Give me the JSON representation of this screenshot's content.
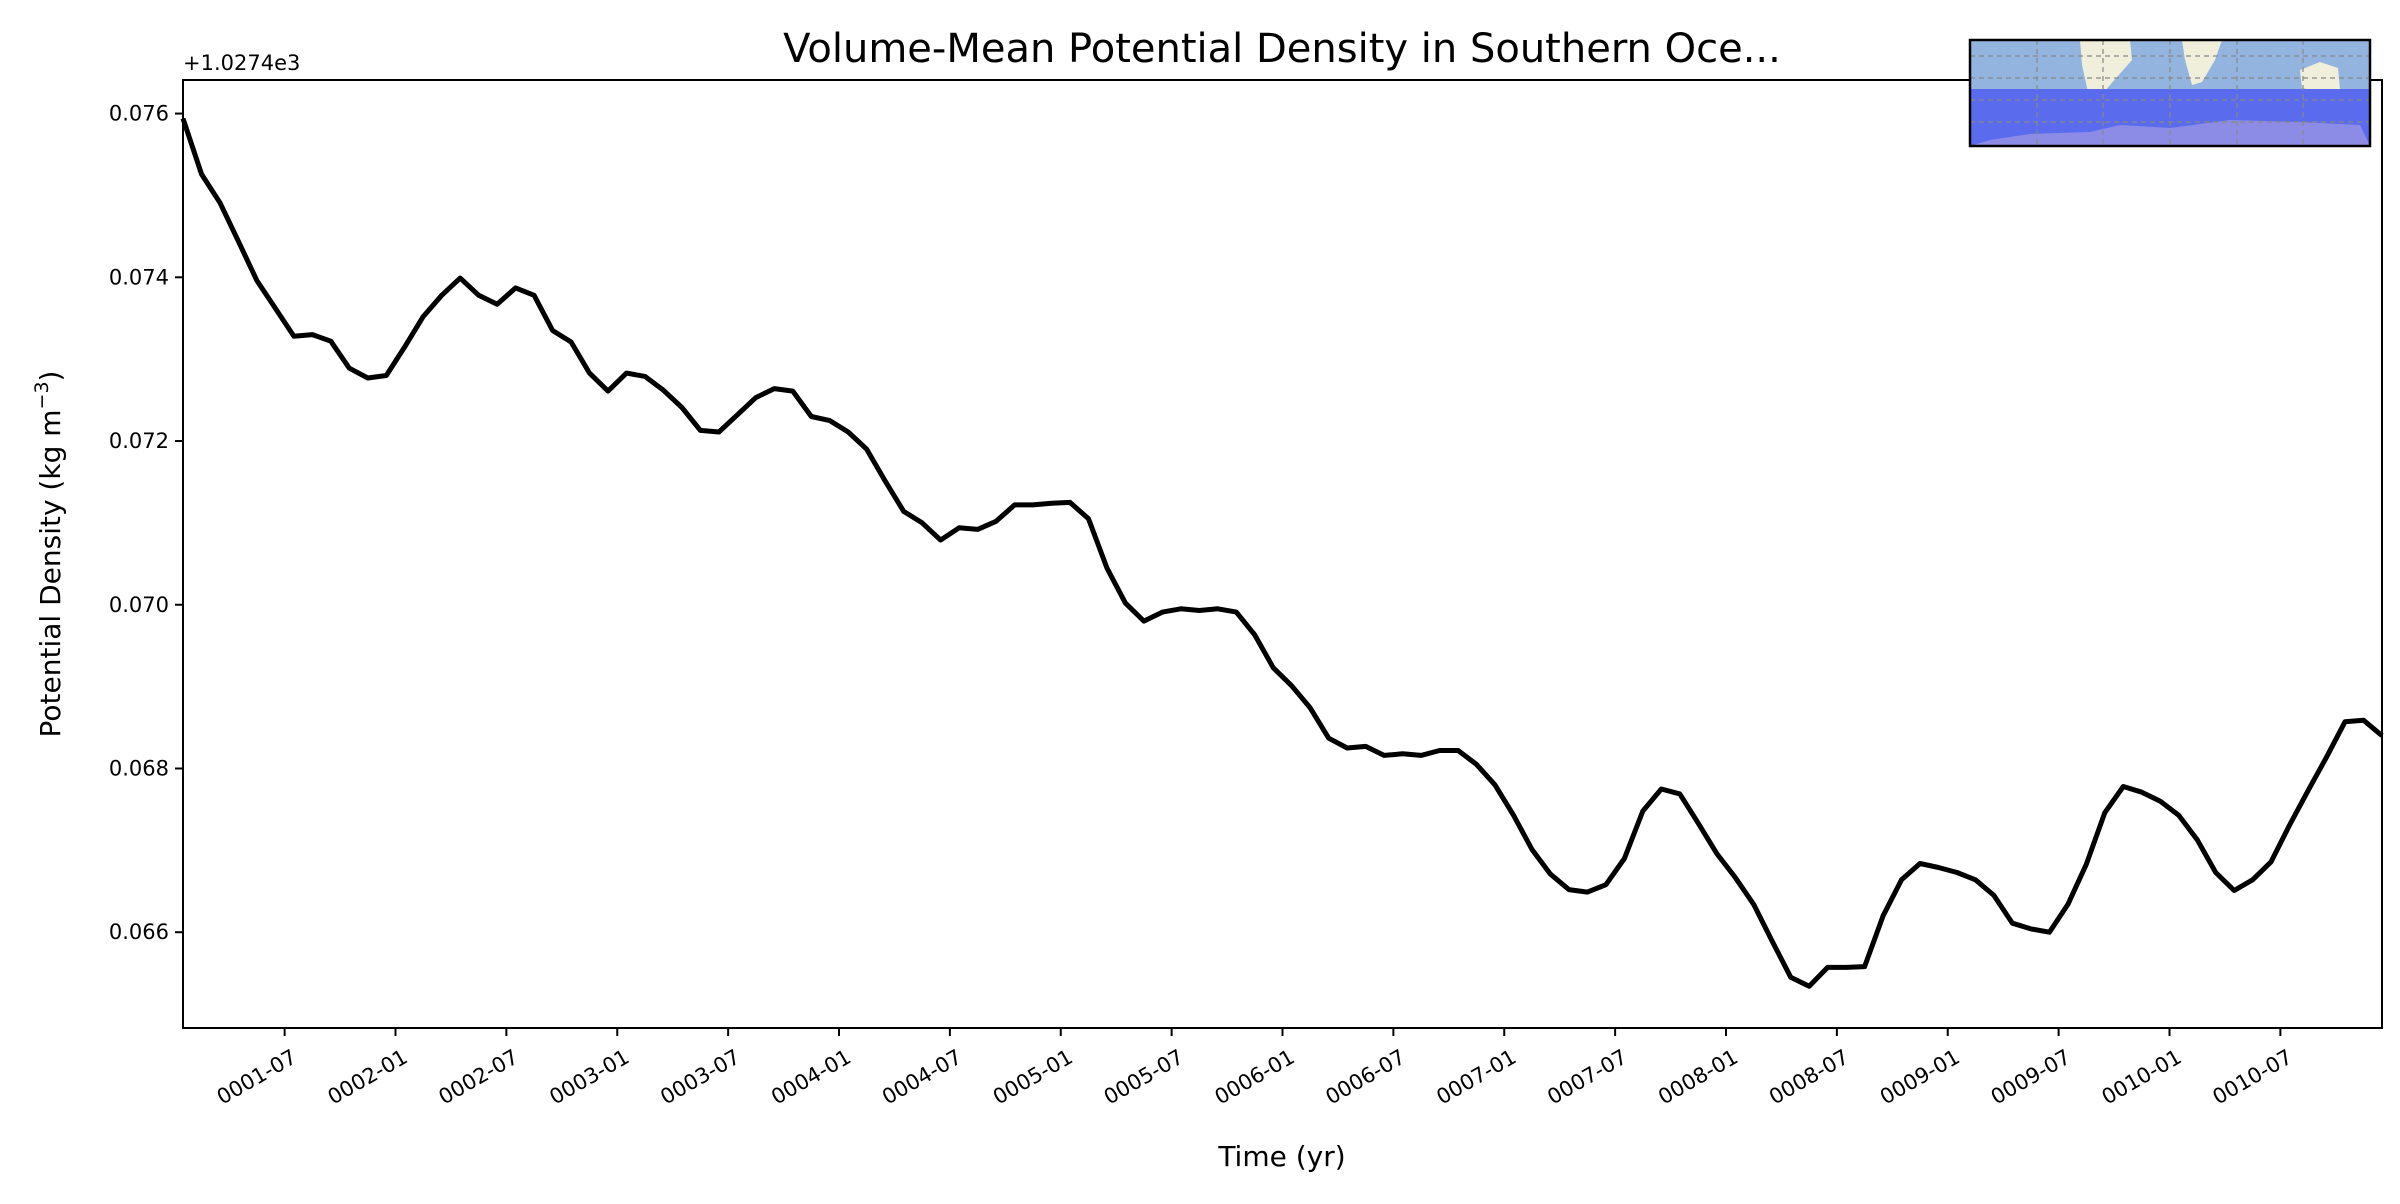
{
  "chart_data": {
    "type": "line",
    "title": "Volume-Mean Potential Density in Southern Oce...",
    "xlabel": "Time (yr)",
    "ylabel": "Potential Density (kg m",
    "ylabel_sup": "−3",
    "ylabel_close": ")",
    "offset_text": "+1.0274e3",
    "ylim": [
      0.06483,
      0.07641
    ],
    "yticks": [
      0.066,
      0.068,
      0.07,
      0.072,
      0.074,
      0.076
    ],
    "ytick_labels": [
      "0.066",
      "0.068",
      "0.070",
      "0.072",
      "0.074",
      "0.076"
    ],
    "x_unit": "months since 0001-01 (mid-month samples)",
    "xlim": [
      0,
      119
    ],
    "xticks": [
      5.5,
      11.5,
      17.5,
      23.5,
      29.5,
      35.5,
      41.5,
      47.5,
      53.5,
      59.5,
      65.5,
      71.5,
      77.5,
      83.5,
      89.5,
      95.5,
      101.5,
      107.5,
      113.5
    ],
    "xtick_labels": [
      "0001-07",
      "0002-01",
      "0002-07",
      "0003-01",
      "0003-07",
      "0004-01",
      "0004-07",
      "0005-01",
      "0005-07",
      "0006-01",
      "0006-07",
      "0007-01",
      "0007-07",
      "0008-01",
      "0008-07",
      "0009-01",
      "0009-07",
      "0010-01",
      "0010-07"
    ],
    "grid": false,
    "line_color": "#000000",
    "inset": "Southern Ocean region map (world map with region below ~35°S highlighted)",
    "colors": {
      "ocean": "#94b4e0",
      "land": "#efefdc",
      "region": "#5a6ced",
      "antarctica": "#8c8ce6"
    },
    "series": [
      {
        "name": "Potential Density",
        "values": [
          0.07594,
          0.07526,
          0.07491,
          0.07444,
          0.07396,
          0.07362,
          0.07328,
          0.0733,
          0.07322,
          0.07289,
          0.07277,
          0.0728,
          0.07315,
          0.07352,
          0.07378,
          0.07399,
          0.07378,
          0.07367,
          0.07387,
          0.07378,
          0.07335,
          0.07321,
          0.07283,
          0.07261,
          0.07283,
          0.07279,
          0.07262,
          0.07241,
          0.07213,
          0.07211,
          0.07232,
          0.07253,
          0.07264,
          0.07261,
          0.0723,
          0.07225,
          0.07211,
          0.0719,
          0.07151,
          0.07114,
          0.071,
          0.07079,
          0.07094,
          0.07092,
          0.07102,
          0.07122,
          0.07122,
          0.07124,
          0.07125,
          0.07105,
          0.07045,
          0.07002,
          0.0698,
          0.06991,
          0.06995,
          0.06993,
          0.06995,
          0.06991,
          0.06963,
          0.06923,
          0.06901,
          0.06874,
          0.06837,
          0.06825,
          0.06827,
          0.06816,
          0.06818,
          0.06816,
          0.06822,
          0.06822,
          0.06805,
          0.0678,
          0.06743,
          0.06701,
          0.06671,
          0.06652,
          0.06649,
          0.06658,
          0.0669,
          0.06748,
          0.06775,
          0.06769,
          0.06733,
          0.06696,
          0.06667,
          0.06634,
          0.06589,
          0.06545,
          0.06534,
          0.06557,
          0.06557,
          0.06558,
          0.0662,
          0.06664,
          0.06684,
          0.06679,
          0.06673,
          0.06664,
          0.06645,
          0.06611,
          0.06604,
          0.066,
          0.06634,
          0.06683,
          0.06746,
          0.06778,
          0.06771,
          0.0676,
          0.06743,
          0.06713,
          0.06673,
          0.06651,
          0.06664,
          0.06686,
          0.06731,
          0.06773,
          0.06814,
          0.06857,
          0.06859,
          0.0684
        ]
      }
    ]
  }
}
